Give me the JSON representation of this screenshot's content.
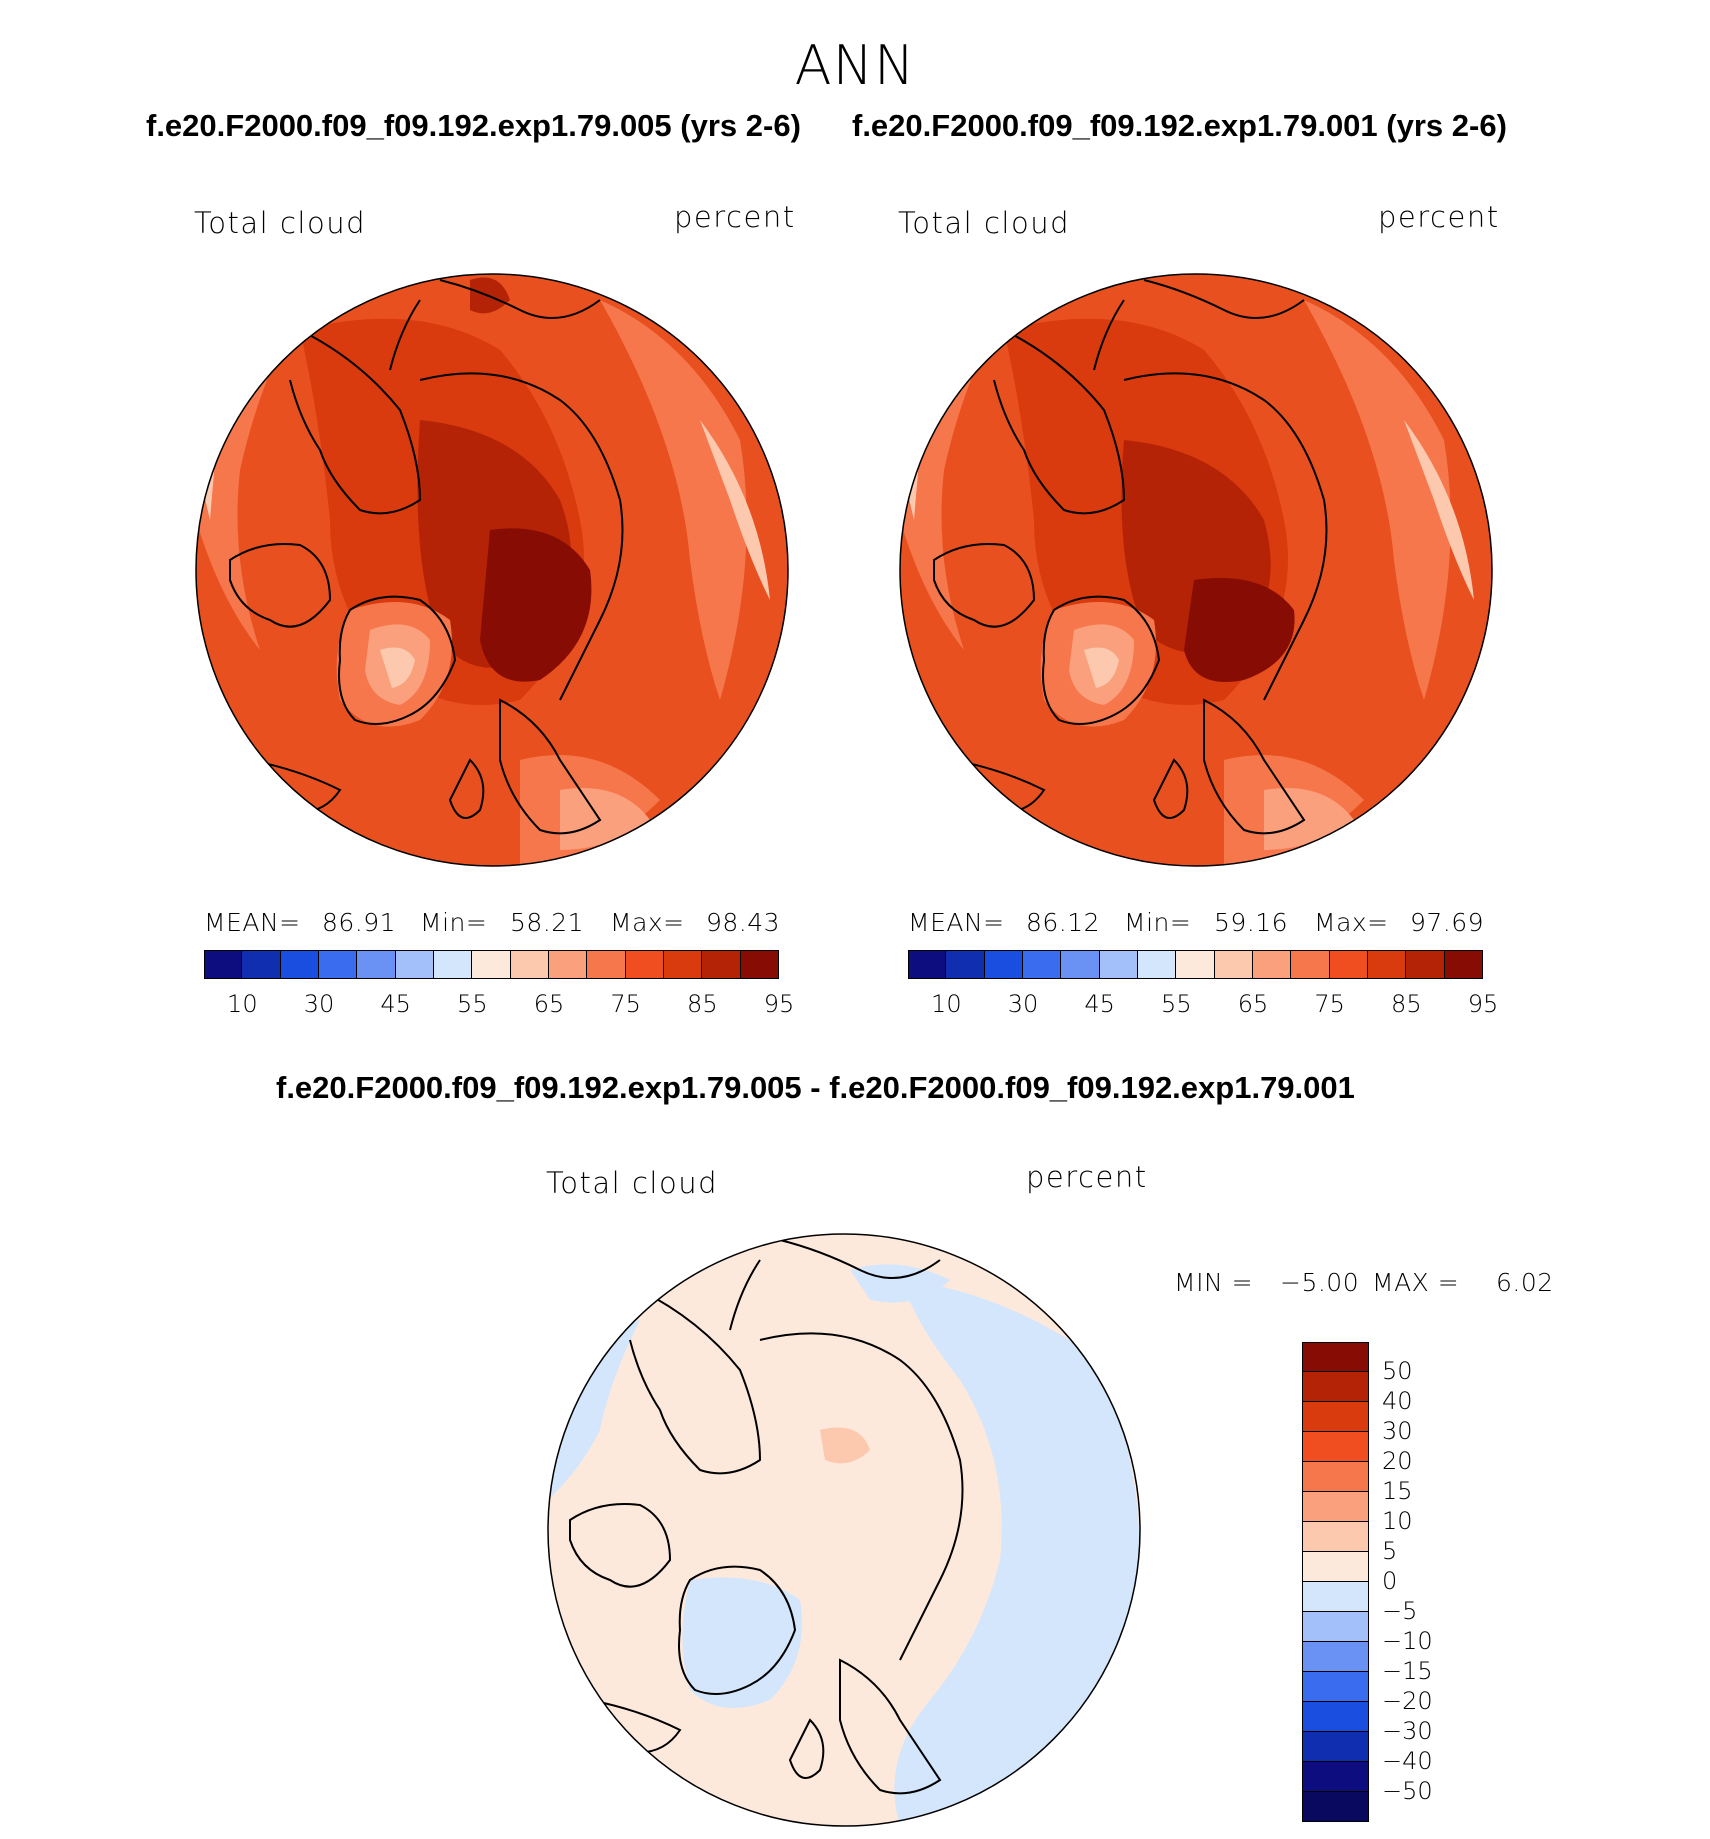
{
  "figure": {
    "title": "ANN",
    "panel1": {
      "header": "f.e20.F2000.f09_f09.192.exp1.79.005 (yrs 2-6)",
      "variable": "Total cloud",
      "units": "percent",
      "mean_label": "MEAN=",
      "mean_value": "86.91",
      "min_label": "Min=",
      "min_value": "58.21",
      "max_label": "Max=",
      "max_value": "98.43"
    },
    "panel2": {
      "header": "f.e20.F2000.f09_f09.192.exp1.79.001 (yrs 2-6)",
      "variable": "Total cloud",
      "units": "percent",
      "mean_label": "MEAN=",
      "mean_value": "86.12",
      "min_label": "Min=",
      "min_value": "59.16",
      "max_label": "Max=",
      "max_value": "97.69"
    },
    "diff": {
      "header": "f.e20.F2000.f09_f09.192.exp1.79.005 - f.e20.F2000.f09_f09.192.exp1.79.001",
      "variable": "Total cloud",
      "units": "percent",
      "min_label": "MIN =",
      "min_value": "−5.00",
      "max_label": "MAX =",
      "max_value": "6.02"
    }
  },
  "colorbar_abs": {
    "ticks": [
      "10",
      "30",
      "45",
      "55",
      "65",
      "75",
      "85",
      "95"
    ],
    "colors": [
      "#0d0d80",
      "#0f2eb0",
      "#1a4ee0",
      "#3a6cf0",
      "#6a92f5",
      "#a3c0fa",
      "#d4e6fc",
      "#fde9dc",
      "#fcc8ae",
      "#fba07c",
      "#f7774c",
      "#f04d20",
      "#d93a0e",
      "#b52306",
      "#860c04"
    ]
  },
  "colorbar_diff": {
    "ticks": [
      "50",
      "40",
      "30",
      "20",
      "15",
      "10",
      "5",
      "0",
      "−5",
      "−10",
      "−15",
      "−20",
      "−30",
      "−40",
      "−50"
    ],
    "colors": [
      "#860c04",
      "#b52306",
      "#d93a0e",
      "#f04d20",
      "#f7774c",
      "#fba07c",
      "#fcc8ae",
      "#fde9dc",
      "#d4e6fc",
      "#a3c0fa",
      "#6a92f5",
      "#3a6cf0",
      "#1a4ee0",
      "#0f2eb0",
      "#0d0d80",
      "#090960"
    ]
  }
}
